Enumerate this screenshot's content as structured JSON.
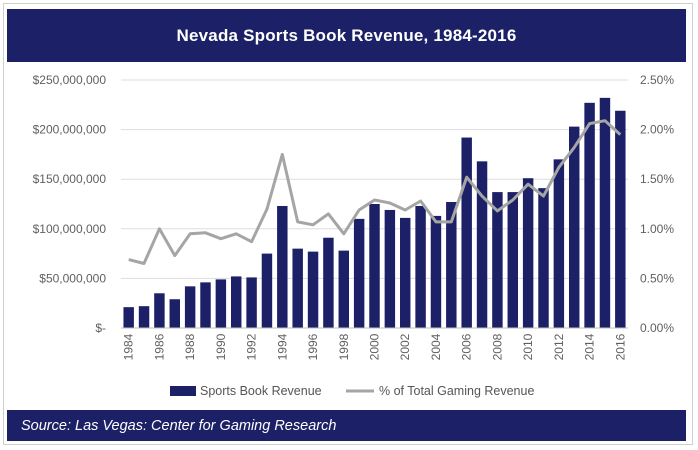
{
  "title": "Nevada Sports Book Revenue, 1984-2016",
  "source": "Source: Las Vegas: Center for Gaming Research",
  "colors": {
    "header": "#1c2066",
    "bar": "#1c2066",
    "line": "#a5a5a5",
    "grid": "#dddddd"
  },
  "chart_data": {
    "type": "bar",
    "title": "Nevada Sports Book Revenue, 1984-2016",
    "categories": [
      "1984",
      "1985",
      "1986",
      "1987",
      "1988",
      "1989",
      "1990",
      "1991",
      "1992",
      "1993",
      "1994",
      "1995",
      "1996",
      "1997",
      "1998",
      "1999",
      "2000",
      "2001",
      "2002",
      "2003",
      "2004",
      "2005",
      "2006",
      "2007",
      "2008",
      "2009",
      "2010",
      "2011",
      "2012",
      "2013",
      "2014",
      "2015",
      "2016"
    ],
    "x_tick_labels": [
      "1984",
      "1986",
      "1988",
      "1990",
      "1992",
      "1994",
      "1996",
      "1998",
      "2000",
      "2002",
      "2004",
      "2006",
      "2008",
      "2010",
      "2012",
      "2014",
      "2016"
    ],
    "series": [
      {
        "name": "Sports Book Revenue",
        "type": "bar",
        "axis": "left",
        "values": [
          21000000,
          22000000,
          35000000,
          29000000,
          42000000,
          46000000,
          49000000,
          52000000,
          51000000,
          75000000,
          123000000,
          80000000,
          77000000,
          91000000,
          78000000,
          110000000,
          125000000,
          119000000,
          111000000,
          123000000,
          113000000,
          127000000,
          192000000,
          168000000,
          137000000,
          137000000,
          151000000,
          141000000,
          170000000,
          203000000,
          227000000,
          232000000,
          219000000
        ]
      },
      {
        "name": "% of Total Gaming Revenue",
        "type": "line",
        "axis": "right",
        "values": [
          0.69,
          0.65,
          1.0,
          0.73,
          0.95,
          0.96,
          0.9,
          0.95,
          0.87,
          1.2,
          1.75,
          1.07,
          1.04,
          1.15,
          0.95,
          1.19,
          1.29,
          1.26,
          1.19,
          1.28,
          1.07,
          1.07,
          1.52,
          1.33,
          1.18,
          1.29,
          1.45,
          1.33,
          1.62,
          1.82,
          2.06,
          2.09,
          1.95
        ]
      }
    ],
    "y_left": {
      "min": 0,
      "max": 250000000,
      "ticks": [
        0,
        50000000,
        100000000,
        150000000,
        200000000,
        250000000
      ],
      "tick_labels": [
        "$-",
        "$50,000,000",
        "$100,000,000",
        "$150,000,000",
        "$200,000,000",
        "$250,000,000"
      ]
    },
    "y_right": {
      "min": 0,
      "max": 2.5,
      "ticks": [
        0,
        0.5,
        1,
        1.5,
        2,
        2.5
      ],
      "tick_labels": [
        "0.00%",
        "0.50%",
        "1.00%",
        "1.50%",
        "2.00%",
        "2.50%"
      ]
    },
    "grid": true,
    "legend_position": "bottom"
  }
}
